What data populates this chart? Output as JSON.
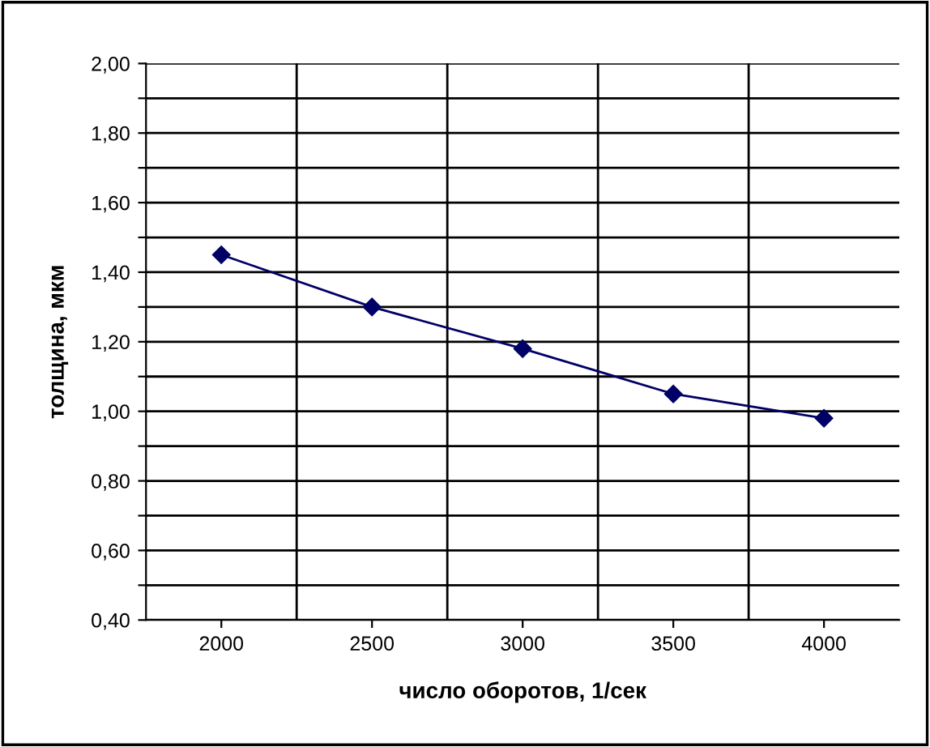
{
  "chart_data": {
    "type": "line",
    "xlabel": "число оборотов, 1/сек",
    "ylabel": "толщина, мкм",
    "categories": [
      "2000",
      "2500",
      "3000",
      "3500",
      "4000"
    ],
    "series": [
      {
        "color": "#000066",
        "values": [
          1.45,
          1.3,
          1.18,
          1.05,
          0.98
        ]
      }
    ],
    "ylim": [
      0.4,
      2.0
    ],
    "yticks": [
      {
        "value": 0.4,
        "label": "0,40"
      },
      {
        "value": 0.5,
        "label": null
      },
      {
        "value": 0.6,
        "label": "0,60"
      },
      {
        "value": 0.7,
        "label": null
      },
      {
        "value": 0.8,
        "label": "0,80"
      },
      {
        "value": 0.9,
        "label": null
      },
      {
        "value": 1.0,
        "label": "1,00"
      },
      {
        "value": 1.1,
        "label": null
      },
      {
        "value": 1.2,
        "label": "1,20"
      },
      {
        "value": 1.3,
        "label": null
      },
      {
        "value": 1.4,
        "label": "1,40"
      },
      {
        "value": 1.5,
        "label": null
      },
      {
        "value": 1.6,
        "label": "1,60"
      },
      {
        "value": 1.7,
        "label": null
      },
      {
        "value": 1.8,
        "label": "1,80"
      },
      {
        "value": 1.9,
        "label": null
      },
      {
        "value": 2.0,
        "label": "2,00"
      }
    ],
    "grid": true,
    "marker": "diamond",
    "line_style": "solid",
    "legend": false
  }
}
